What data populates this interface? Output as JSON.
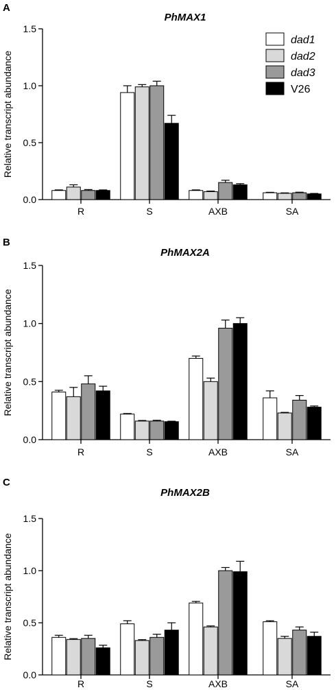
{
  "colors": {
    "dad1": "#ffffff",
    "dad2": "#d9d9d9",
    "dad3": "#9a9a9a",
    "V26": "#000000",
    "axis": "#000000"
  },
  "legend": {
    "placement": "top-right",
    "entries": [
      {
        "name": "dad1",
        "italic": true
      },
      {
        "name": "dad2",
        "italic": true
      },
      {
        "name": "dad3",
        "italic": true
      },
      {
        "name": "V26",
        "italic": false
      }
    ]
  },
  "chart_data": [
    {
      "type": "bar",
      "panel": "A",
      "title": "PhMAX1",
      "ylabel": "Relative transcript abundance",
      "xlabel": "",
      "ylim": [
        0,
        1.5
      ],
      "yticks": [
        0.0,
        0.5,
        1.0,
        1.5
      ],
      "ytick_labels": [
        "0.0",
        "0.5",
        "1.0",
        "1.5"
      ],
      "categories": [
        "R",
        "S",
        "AXB",
        "SA"
      ],
      "series": [
        {
          "name": "dad1",
          "values": [
            0.08,
            0.94,
            0.08,
            0.06
          ],
          "errors": [
            0.005,
            0.06,
            0.005,
            0.004
          ]
        },
        {
          "name": "dad2",
          "values": [
            0.11,
            0.99,
            0.07,
            0.055
          ],
          "errors": [
            0.02,
            0.02,
            0.005,
            0.004
          ]
        },
        {
          "name": "dad3",
          "values": [
            0.08,
            1.0,
            0.15,
            0.06
          ],
          "errors": [
            0.008,
            0.04,
            0.02,
            0.005
          ]
        },
        {
          "name": "V26",
          "values": [
            0.08,
            0.67,
            0.13,
            0.05
          ],
          "errors": [
            0.005,
            0.07,
            0.01,
            0.004
          ]
        }
      ]
    },
    {
      "type": "bar",
      "panel": "B",
      "title": "PhMAX2A",
      "ylabel": "Relative transcript abundance",
      "xlabel": "",
      "ylim": [
        0,
        1.5
      ],
      "yticks": [
        0.0,
        0.5,
        1.0,
        1.5
      ],
      "ytick_labels": [
        "0.0",
        "0.5",
        "1.0",
        "1.5"
      ],
      "categories": [
        "R",
        "S",
        "AXB",
        "SA"
      ],
      "series": [
        {
          "name": "dad1",
          "values": [
            0.41,
            0.22,
            0.7,
            0.36
          ],
          "errors": [
            0.015,
            0.005,
            0.02,
            0.06
          ]
        },
        {
          "name": "dad2",
          "values": [
            0.37,
            0.16,
            0.5,
            0.23
          ],
          "errors": [
            0.08,
            0.005,
            0.03,
            0.005
          ]
        },
        {
          "name": "dad3",
          "values": [
            0.48,
            0.16,
            0.96,
            0.34
          ],
          "errors": [
            0.07,
            0.007,
            0.07,
            0.04
          ]
        },
        {
          "name": "V26",
          "values": [
            0.42,
            0.155,
            1.0,
            0.28
          ],
          "errors": [
            0.04,
            0.004,
            0.05,
            0.01
          ]
        }
      ]
    },
    {
      "type": "bar",
      "panel": "C",
      "title": "PhMAX2B",
      "ylabel": "Relative transcript abundance",
      "xlabel": "",
      "ylim": [
        0,
        1.5
      ],
      "yticks": [
        0.0,
        0.5,
        1.0,
        1.5
      ],
      "ytick_labels": [
        "0.0",
        "0.5",
        "1.0",
        "1.5"
      ],
      "categories": [
        "R",
        "S",
        "AXB",
        "SA"
      ],
      "series": [
        {
          "name": "dad1",
          "values": [
            0.36,
            0.49,
            0.69,
            0.51
          ],
          "errors": [
            0.02,
            0.03,
            0.015,
            0.01
          ]
        },
        {
          "name": "dad2",
          "values": [
            0.34,
            0.33,
            0.46,
            0.35
          ],
          "errors": [
            0.008,
            0.008,
            0.01,
            0.02
          ]
        },
        {
          "name": "dad3",
          "values": [
            0.35,
            0.36,
            1.0,
            0.43
          ],
          "errors": [
            0.03,
            0.03,
            0.03,
            0.03
          ]
        },
        {
          "name": "V26",
          "values": [
            0.26,
            0.43,
            0.99,
            0.37
          ],
          "errors": [
            0.025,
            0.07,
            0.1,
            0.04
          ]
        }
      ]
    }
  ]
}
